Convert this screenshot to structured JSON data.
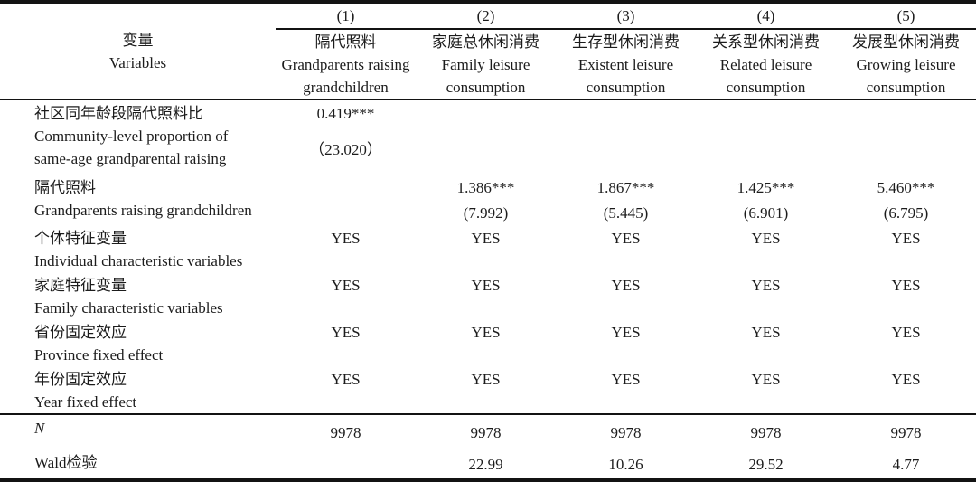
{
  "colors": {
    "text": "#1c1c1c",
    "rule": "#131313",
    "background": "#ffffff"
  },
  "table": {
    "header": {
      "variables_zh": "变量",
      "variables_en": "Variables",
      "columns": [
        {
          "num": "(1)",
          "zh": "隔代照料",
          "en": "Grandparents raising grandchildren"
        },
        {
          "num": "(2)",
          "zh": "家庭总休闲消费",
          "en": "Family leisure consumption"
        },
        {
          "num": "(3)",
          "zh": "生存型休闲消费",
          "en": "Existent leisure consumption"
        },
        {
          "num": "(4)",
          "zh": "关系型休闲消费",
          "en": "Related leisure consumption"
        },
        {
          "num": "(5)",
          "zh": "发展型休闲消费",
          "en": "Growing leisure consumption"
        }
      ]
    },
    "rows": [
      {
        "label_zh": "社区同年龄段隔代照料比",
        "label_en": "Community-level proportion of same-age grandparental raising",
        "values": [
          {
            "coef": "0.419***",
            "t": "（23.020）"
          },
          null,
          null,
          null,
          null
        ]
      },
      {
        "label_zh": "隔代照料",
        "label_en": "Grandparents raising grandchildren",
        "values": [
          null,
          {
            "coef": "1.386***",
            "t": "(7.992)"
          },
          {
            "coef": "1.867***",
            "t": "(5.445)"
          },
          {
            "coef": "1.425***",
            "t": "(6.901)"
          },
          {
            "coef": "5.460***",
            "t": "(6.795)"
          }
        ]
      },
      {
        "label_zh": "个体特征变量",
        "label_en": "Individual characteristic variables",
        "values": [
          "YES",
          "YES",
          "YES",
          "YES",
          "YES"
        ]
      },
      {
        "label_zh": "家庭特征变量",
        "label_en": "Family characteristic variables",
        "values": [
          "YES",
          "YES",
          "YES",
          "YES",
          "YES"
        ]
      },
      {
        "label_zh": "省份固定效应",
        "label_en": "Province fixed effect",
        "values": [
          "YES",
          "YES",
          "YES",
          "YES",
          "YES"
        ]
      },
      {
        "label_zh": "年份固定效应",
        "label_en": "Year fixed effect",
        "values": [
          "YES",
          "YES",
          "YES",
          "YES",
          "YES"
        ]
      }
    ],
    "stats": [
      {
        "label": "N",
        "values": [
          "9978",
          "9978",
          "9978",
          "9978",
          "9978"
        ]
      },
      {
        "label": "Wald检验",
        "values": [
          "",
          "22.99",
          "10.26",
          "29.52",
          "4.77"
        ]
      }
    ]
  }
}
